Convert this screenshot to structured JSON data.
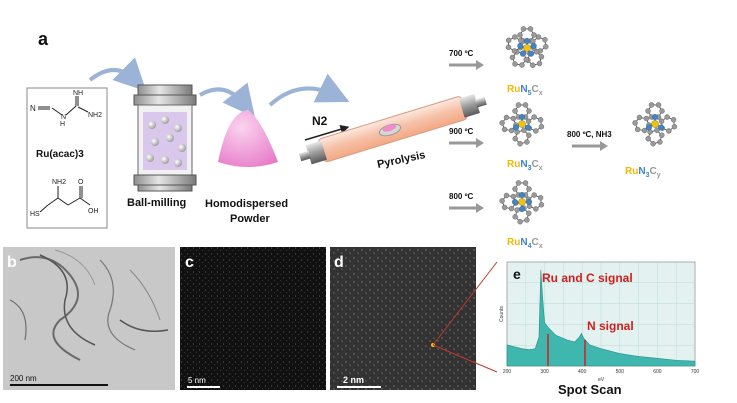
{
  "panels": {
    "a": "a",
    "b": "b",
    "c": "c",
    "d": "d",
    "e": "e"
  },
  "precursors": {
    "ru_acac": "Ru(acac)3",
    "dicyandiamide_atoms": [
      "N",
      "NH",
      "NH2",
      "H",
      "N"
    ],
    "cysteine_atoms": [
      "NH2",
      "O",
      "OH",
      "HS"
    ]
  },
  "process": {
    "ball_milling": "Ball-milling",
    "homodispersed_line1": "Homodispersed",
    "homodispersed_line2": "Powder",
    "gas": "N2",
    "pyrolysis": "Pyrolysis"
  },
  "temperatures": {
    "t700": "700 ºC",
    "t900": "900 ºC",
    "t800": "800 ºC",
    "t800_nh3": "800 ºC, NH3"
  },
  "products": {
    "ru": "Ru",
    "n": "N",
    "c": "C",
    "p1": {
      "n_sub": "5",
      "c_sub": "x"
    },
    "p2": {
      "n_sub": "3",
      "c_sub": "x"
    },
    "p3": {
      "n_sub": "4",
      "c_sub": "x"
    },
    "p4": {
      "n_sub": "3",
      "c_sub": "y"
    }
  },
  "scale_bars": {
    "b": "200 nm",
    "c": "5 nm",
    "d": "2 nm"
  },
  "eds": {
    "ru_c_label": "Ru and C signal",
    "n_label": "N signal",
    "ylabel": "Counts",
    "xlabel": "eV",
    "caption": "Spot Scan",
    "xticks": [
      "200",
      "300",
      "400",
      "500",
      "600",
      "700"
    ]
  },
  "colors": {
    "ru_atom": "#f5c400",
    "n_atom": "#3a86d0",
    "c_atom": "#9a9a9a",
    "label_red": "#d0201e",
    "spectrum_fill": "#3fb6ae",
    "spectrum_bg": "#e3f2f1"
  },
  "chart_data": {
    "type": "area",
    "title": "",
    "xlabel": "eV",
    "ylabel": "Counts",
    "xlim": [
      200,
      700
    ],
    "x": [
      200,
      220,
      240,
      260,
      275,
      285,
      290,
      295,
      300,
      310,
      330,
      360,
      380,
      392,
      398,
      404,
      420,
      450,
      500,
      550,
      600,
      650,
      700
    ],
    "series": [
      {
        "values": [
          0.22,
          0.2,
          0.18,
          0.17,
          0.18,
          0.3,
          1.0,
          0.7,
          0.45,
          0.4,
          0.32,
          0.27,
          0.25,
          0.3,
          0.34,
          0.29,
          0.22,
          0.18,
          0.13,
          0.1,
          0.08,
          0.06,
          0.05
        ]
      }
    ],
    "annotations": [
      "Ru and C signal",
      "N signal"
    ]
  }
}
